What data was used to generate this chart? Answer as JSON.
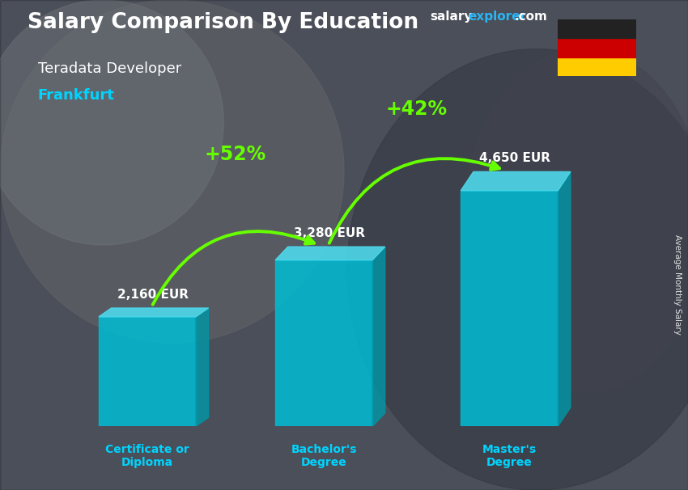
{
  "title_main": "Salary Comparison By Education",
  "title_sub1": "Teradata Developer",
  "title_sub2": "Frankfurt",
  "categories": [
    "Certificate or\nDiploma",
    "Bachelor's\nDegree",
    "Master's\nDegree"
  ],
  "values": [
    2160,
    3280,
    4650
  ],
  "value_labels": [
    "2,160 EUR",
    "3,280 EUR",
    "4,650 EUR"
  ],
  "pct_labels": [
    "+52%",
    "+42%"
  ],
  "bar_color_front": "#00bcd4",
  "bar_color_top": "#4dd9ec",
  "bar_color_side": "#0097a7",
  "bg_color": "#6b7280",
  "text_color_white": "#ffffff",
  "text_color_cyan": "#00d4ff",
  "text_color_green": "#66ff00",
  "ylabel": "Average Monthly Salary",
  "ylim": [
    0,
    5800
  ],
  "bar_positions": [
    1.0,
    3.0,
    5.1
  ],
  "bar_width": 1.1,
  "flag_colors": [
    "#222222",
    "#CC0000",
    "#FFCC00"
  ],
  "site_salary_color": "#ffffff",
  "site_explorer_color": "#29b6f6",
  "site_com_color": "#ffffff"
}
